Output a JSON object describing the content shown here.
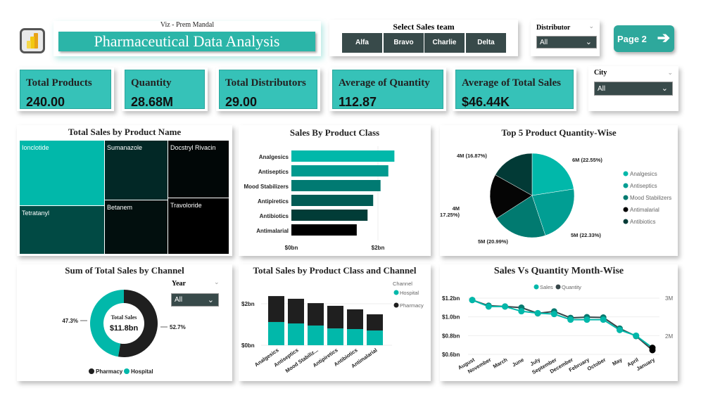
{
  "header": {
    "subtitle": "Viz - Prem Mandal",
    "title": "Pharmaceutical Data Analysis",
    "logo_icon": "power-bi-icon"
  },
  "sales_team": {
    "label": "Select Sales team",
    "options": [
      "Alfa",
      "Bravo",
      "Charlie",
      "Delta"
    ]
  },
  "distributor": {
    "label": "Distributor",
    "value": "All"
  },
  "city": {
    "label": "City",
    "value": "All"
  },
  "year": {
    "label": "Year",
    "value": "All"
  },
  "page_button": {
    "label": "Page 2",
    "icon": "arrow-right-icon"
  },
  "kpis": [
    {
      "title": "Total Products",
      "value": "240.00"
    },
    {
      "title": "Quantity",
      "value": "28.68M"
    },
    {
      "title": "Total Distributors",
      "value": "29.00"
    },
    {
      "title": "Average of Quantity",
      "value": "112.87"
    },
    {
      "title": "Average of Total Sales",
      "value": "$46.44K"
    }
  ],
  "colors": {
    "teal": "#01b8aa",
    "kpi_bg": "#36c2b8",
    "slicer_bg": "#384a4a",
    "dark": "#1f1f1f"
  },
  "chart_data": [
    {
      "type": "treemap",
      "title": "Total Sales by Product Name",
      "items": [
        {
          "label": "Ionclotide",
          "color": "#01b8aa"
        },
        {
          "label": "Tetratanyl",
          "color": "#014a44"
        },
        {
          "label": "Sumanazole",
          "color": "#022826"
        },
        {
          "label": "Betanem",
          "color": "#020f0e"
        },
        {
          "label": "Docstryl Rivacin",
          "color": "#010707"
        },
        {
          "label": "Travoloride",
          "color": "#000000"
        }
      ]
    },
    {
      "type": "bar",
      "orientation": "horizontal",
      "title": "Sales By Product Class",
      "categories": [
        "Analgesics",
        "Antiseptics",
        "Mood Stabilizers",
        "Antipiretics",
        "Antibiotics",
        "Antimalarial"
      ],
      "values": [
        2.38,
        2.24,
        2.06,
        1.89,
        1.76,
        1.51
      ],
      "unit": "bn",
      "xticks": [
        "$0bn",
        "$2bn"
      ],
      "xlim": [
        0,
        2.6
      ],
      "colors": [
        "#01b8aa",
        "#019a8f",
        "#017a72",
        "#015c55",
        "#013c37",
        "#000000"
      ]
    },
    {
      "type": "pie",
      "title": "Top 5 Product  Quantity-Wise",
      "slices": [
        {
          "name": "Analgesics",
          "label": "6M (22.55%)",
          "value": 22.55,
          "color": "#01b8aa"
        },
        {
          "name": "Antiseptics",
          "label": "5M (22.33%)",
          "value": 22.33,
          "color": "#019e93"
        },
        {
          "name": "Mood Stabilizers",
          "label": "5M (20.99%)",
          "value": 20.99,
          "color": "#017a70"
        },
        {
          "name": "Antimalarial",
          "label": "4M\n(17.25%)",
          "value": 17.25,
          "color": "#050505"
        },
        {
          "name": "Antibiotics",
          "label": "4M (16.87%)",
          "value": 16.87,
          "color": "#023a36"
        }
      ],
      "legend": [
        "Analgesics",
        "Antiseptics",
        "Mood Stabilizers",
        "Antimalarial",
        "Antibiotics"
      ],
      "legend_position": "right"
    },
    {
      "type": "donut",
      "title": "Sum of Total Sales by Channel",
      "center_label": "Total Sales",
      "center_value": "$11.8bn",
      "slices": [
        {
          "name": "Pharmacy",
          "value": 52.7,
          "label": "52.7%",
          "color": "#1f1f1f"
        },
        {
          "name": "Hospital",
          "value": 47.3,
          "label": "47.3%",
          "color": "#01b8aa"
        }
      ],
      "legend": [
        "Pharmacy",
        "Hospital"
      ],
      "legend_position": "bottom"
    },
    {
      "type": "bar",
      "stacked": true,
      "title": "Total Sales by Product Class and Channel",
      "categories": [
        "Analgesics",
        "Antiseptics",
        "Mood Stabiliz...",
        "Antipiretics",
        "Antibiotics",
        "Antimalarial"
      ],
      "series": [
        {
          "name": "Hospital",
          "values": [
            1.12,
            1.05,
            0.95,
            0.81,
            0.78,
            0.71
          ],
          "color": "#01b8aa"
        },
        {
          "name": "Pharmacy",
          "values": [
            1.25,
            1.19,
            1.08,
            1.09,
            0.95,
            0.78
          ],
          "color": "#1f1f1f"
        }
      ],
      "yticks": [
        "$0bn",
        "$2bn"
      ],
      "ylim": [
        0,
        2.6
      ],
      "legend_title": "Channel",
      "legend_position": "right"
    },
    {
      "type": "line",
      "title": "Sales Vs Quantity Month-Wise",
      "x": [
        "August",
        "November",
        "March",
        "June",
        "July",
        "September",
        "December",
        "February",
        "October",
        "May",
        "April",
        "January"
      ],
      "series": [
        {
          "name": "Sales",
          "axis": "left",
          "values": [
            1.18,
            1.11,
            1.11,
            1.06,
            1.04,
            1.03,
            0.97,
            0.97,
            0.97,
            0.86,
            0.8,
            0.67
          ],
          "color": "#01b8aa"
        },
        {
          "name": "Quantity",
          "axis": "right",
          "values": [
            2.95,
            2.8,
            2.78,
            2.75,
            2.6,
            2.65,
            2.48,
            2.5,
            2.49,
            2.2,
            2.0,
            1.63
          ],
          "color": "#374649"
        }
      ],
      "yticks_left": [
        "$1.2bn",
        "$1.0bn",
        "$0.8bn",
        "$0.6bn"
      ],
      "ylim_left": [
        0.6,
        1.2
      ],
      "yticks_right": [
        "3M",
        "2M"
      ],
      "ylim_right": [
        1.3,
        3.0
      ],
      "legend_position": "top"
    }
  ]
}
